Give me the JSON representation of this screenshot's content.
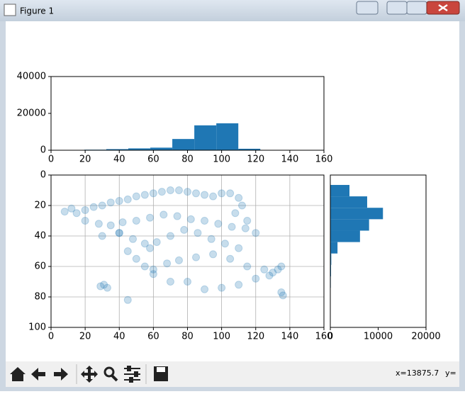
{
  "window": {
    "title": "Figure 1",
    "status_x": "x=13875.7",
    "status_y": "y="
  },
  "chart_data": [
    {
      "type": "histogram",
      "orientation": "vertical",
      "color": "#1f77b4",
      "bins": [
        6.6,
        19.5,
        32.4,
        45.3,
        58.2,
        71.1,
        84.0,
        96.9,
        109.8,
        122.7,
        135.6
      ],
      "counts": [
        50,
        300,
        600,
        1000,
        1400,
        6100,
        13500,
        14600,
        800,
        100
      ],
      "xlim": [
        0,
        160
      ],
      "xticks": [
        0,
        20,
        40,
        60,
        80,
        100,
        120,
        140,
        160
      ],
      "ylim": [
        0,
        40000
      ],
      "yticks": [
        0,
        20000,
        40000
      ]
    },
    {
      "type": "scatter",
      "color": "#1f77b4",
      "alpha": 0.25,
      "grid": true,
      "invert_y": true,
      "x": [
        8,
        12,
        15,
        20,
        25,
        30,
        35,
        40,
        45,
        50,
        55,
        60,
        65,
        70,
        75,
        80,
        85,
        90,
        95,
        100,
        105,
        110,
        112,
        108,
        115,
        20,
        28,
        35,
        42,
        50,
        58,
        66,
        74,
        82,
        90,
        98,
        106,
        114,
        120,
        30,
        40,
        48,
        55,
        62,
        70,
        78,
        86,
        94,
        102,
        110,
        45,
        50,
        55,
        60,
        68,
        75,
        85,
        95,
        105,
        115,
        125,
        130,
        135,
        80,
        90,
        100,
        110,
        120,
        128,
        133,
        29,
        31,
        33,
        135,
        136,
        45,
        60,
        70,
        58,
        40
      ],
      "y": [
        24,
        22,
        25,
        23,
        21,
        20,
        18,
        17,
        16,
        14,
        13,
        12,
        11,
        10,
        10,
        11,
        12,
        13,
        14,
        12,
        12,
        15,
        20,
        25,
        30,
        30,
        32,
        33,
        31,
        30,
        28,
        26,
        27,
        29,
        30,
        32,
        34,
        35,
        38,
        40,
        38,
        42,
        45,
        44,
        40,
        36,
        38,
        42,
        45,
        48,
        50,
        55,
        60,
        62,
        58,
        56,
        54,
        52,
        55,
        60,
        62,
        64,
        60,
        70,
        75,
        74,
        72,
        68,
        66,
        62,
        73,
        72,
        74,
        77,
        79,
        82,
        65,
        70,
        48,
        38
      ],
      "xlim": [
        0,
        160
      ],
      "xticks": [
        0,
        20,
        40,
        60,
        80,
        100,
        120,
        140,
        160
      ],
      "ylim": [
        0,
        100
      ],
      "yticks": [
        0,
        20,
        40,
        60,
        80,
        100
      ]
    },
    {
      "type": "histogram",
      "orientation": "horizontal",
      "color": "#1f77b4",
      "invert_y": true,
      "bins": [
        6.5,
        14,
        21.5,
        29,
        36.5,
        44,
        51.5,
        59,
        66.5,
        74,
        81.5
      ],
      "counts": [
        4000,
        7700,
        11000,
        8100,
        6200,
        1500,
        200,
        150,
        100,
        50
      ],
      "xlim": [
        0,
        20000
      ],
      "xticks": [
        0,
        10000,
        20000
      ],
      "ylim": [
        0,
        100
      ]
    }
  ]
}
